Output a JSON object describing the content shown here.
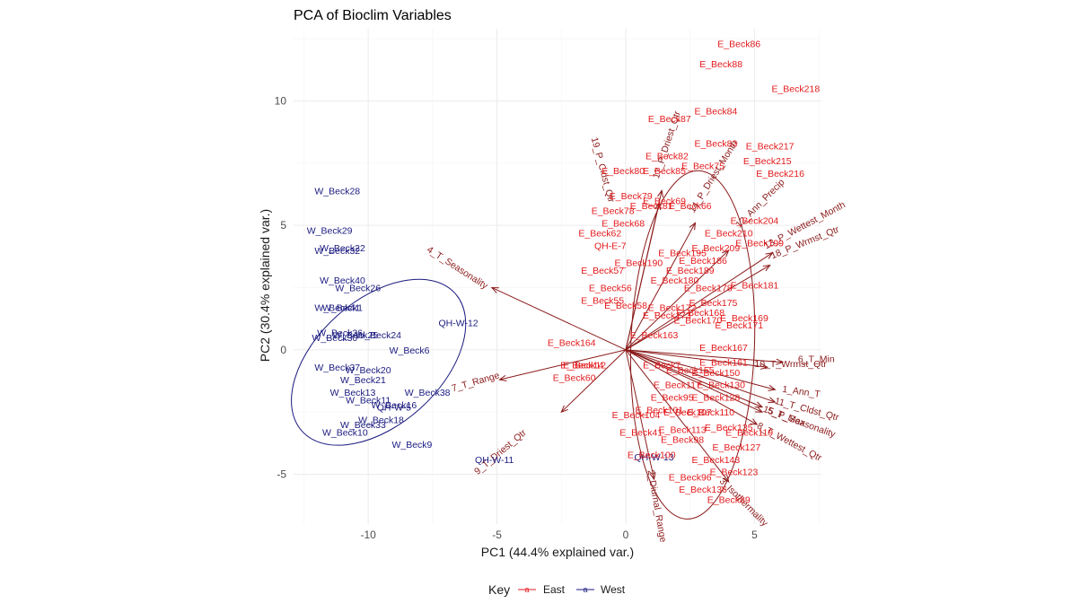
{
  "chart_data": {
    "type": "scatter",
    "title": "PCA of Bioclim Variables",
    "xlabel": "PC1 (44.4% explained var.)",
    "ylabel": "PC2 (30.4% explained var.)",
    "xlim": [
      -12.9,
      7.6
    ],
    "ylim": [
      -7.0,
      12.9
    ],
    "x_ticks": [
      -10,
      -5,
      0,
      5
    ],
    "y_ticks": [
      -5,
      0,
      5,
      10
    ],
    "grid": true,
    "legend": {
      "title": "Key",
      "position": "bottom",
      "entries": [
        {
          "label": "East",
          "color": "#e41a1c"
        },
        {
          "label": "West",
          "color": "#1a1a80"
        }
      ]
    },
    "colors": {
      "East": "#e41a1c",
      "West": "#1a1a80",
      "arrows": "#8b1a1a"
    },
    "series": [
      {
        "name": "West",
        "points": [
          {
            "label": "W_Beck28",
            "x": -11.2,
            "y": 6.4
          },
          {
            "label": "W_Beck29",
            "x": -11.5,
            "y": 4.8
          },
          {
            "label": "W_Beck22",
            "x": -11.0,
            "y": 4.1
          },
          {
            "label": "W_Beck32",
            "x": -11.2,
            "y": 4.0
          },
          {
            "label": "W_Beck40",
            "x": -11.0,
            "y": 2.8
          },
          {
            "label": "W_Beck26",
            "x": -10.4,
            "y": 2.5
          },
          {
            "label": "W_Beck41",
            "x": -11.2,
            "y": 1.7
          },
          {
            "label": "W_Beck1",
            "x": -11.0,
            "y": 1.7
          },
          {
            "label": "W_Beck36",
            "x": -11.1,
            "y": 0.7
          },
          {
            "label": "W_Beck30",
            "x": -11.3,
            "y": 0.5
          },
          {
            "label": "W_Beck25",
            "x": -10.5,
            "y": 0.6
          },
          {
            "label": "W_Beck24",
            "x": -9.6,
            "y": 0.6
          },
          {
            "label": "W_Beck6",
            "x": -8.4,
            "y": 0.0
          },
          {
            "label": "W_Beck37",
            "x": -11.2,
            "y": -0.7
          },
          {
            "label": "W_Beck20",
            "x": -10.0,
            "y": -0.8
          },
          {
            "label": "W_Beck21",
            "x": -10.2,
            "y": -1.2
          },
          {
            "label": "W_Beck13",
            "x": -10.6,
            "y": -1.7
          },
          {
            "label": "W_Beck38",
            "x": -7.7,
            "y": -1.7
          },
          {
            "label": "W_Beck11",
            "x": -10.0,
            "y": -2.0
          },
          {
            "label": "W_Beck16",
            "x": -9.0,
            "y": -2.2
          },
          {
            "label": "QH-W-5",
            "x": -9.0,
            "y": -2.3
          },
          {
            "label": "W_Beck18",
            "x": -9.5,
            "y": -2.8
          },
          {
            "label": "W_Beck33",
            "x": -10.2,
            "y": -3.0
          },
          {
            "label": "W_Beck10",
            "x": -10.9,
            "y": -3.3
          },
          {
            "label": "W_Beck9",
            "x": -8.3,
            "y": -3.8
          },
          {
            "label": "QH-W-12",
            "x": -6.5,
            "y": 1.1
          },
          {
            "label": "QH-W-11",
            "x": -5.1,
            "y": -4.4
          },
          {
            "label": "QH-W-13",
            "x": 1.1,
            "y": -4.3
          }
        ]
      },
      {
        "name": "East",
        "points": [
          {
            "label": "E_Beck86",
            "x": 4.4,
            "y": 12.3
          },
          {
            "label": "E_Beck88",
            "x": 3.7,
            "y": 11.5
          },
          {
            "label": "E_Beck218",
            "x": 6.6,
            "y": 10.5
          },
          {
            "label": "E_Beck84",
            "x": 3.5,
            "y": 9.6
          },
          {
            "label": "E_Beck87",
            "x": 1.7,
            "y": 9.3
          },
          {
            "label": "E_Beck83",
            "x": 3.5,
            "y": 8.3
          },
          {
            "label": "E_Beck217",
            "x": 5.6,
            "y": 8.2
          },
          {
            "label": "E_Beck82",
            "x": 1.6,
            "y": 7.8
          },
          {
            "label": "E_Beck215",
            "x": 5.5,
            "y": 7.6
          },
          {
            "label": "E_Beck75",
            "x": 3.0,
            "y": 7.4
          },
          {
            "label": "E_Beck216",
            "x": 6.0,
            "y": 7.1
          },
          {
            "label": "E_Beck80",
            "x": -0.1,
            "y": 7.2
          },
          {
            "label": "E_Beck85",
            "x": 1.5,
            "y": 7.2
          },
          {
            "label": "E_Beck79",
            "x": 0.2,
            "y": 6.2
          },
          {
            "label": "E_Beck69",
            "x": 1.5,
            "y": 6.0
          },
          {
            "label": "E_Beck81",
            "x": 1.0,
            "y": 5.8
          },
          {
            "label": "E_Beck66",
            "x": 2.5,
            "y": 5.8
          },
          {
            "label": "E_Beck78",
            "x": -0.5,
            "y": 5.6
          },
          {
            "label": "E_Beck68",
            "x": -0.1,
            "y": 5.1
          },
          {
            "label": "E_Beck204",
            "x": 5.0,
            "y": 5.2
          },
          {
            "label": "E_Beck62",
            "x": -1.0,
            "y": 4.7
          },
          {
            "label": "E_Beck210",
            "x": 4.0,
            "y": 4.7
          },
          {
            "label": "E_Beck199",
            "x": 5.2,
            "y": 4.3
          },
          {
            "label": "QH-E-7",
            "x": -0.6,
            "y": 4.2
          },
          {
            "label": "E_Beck209",
            "x": 3.5,
            "y": 4.1
          },
          {
            "label": "E_Beck195",
            "x": 2.2,
            "y": 3.9
          },
          {
            "label": "E_Beck186",
            "x": 3.0,
            "y": 3.6
          },
          {
            "label": "E_Beck190",
            "x": 0.5,
            "y": 3.5
          },
          {
            "label": "E_Beck57",
            "x": -0.9,
            "y": 3.2
          },
          {
            "label": "E_Beck189",
            "x": 2.5,
            "y": 3.2
          },
          {
            "label": "E_Beck181",
            "x": 5.0,
            "y": 2.6
          },
          {
            "label": "E_Beck180",
            "x": 1.9,
            "y": 2.8
          },
          {
            "label": "E_Beck178",
            "x": 3.2,
            "y": 2.5
          },
          {
            "label": "E_Beck56",
            "x": -0.6,
            "y": 2.5
          },
          {
            "label": "E_Beck55",
            "x": -0.9,
            "y": 2.0
          },
          {
            "label": "E_Beck58",
            "x": 0.0,
            "y": 1.8
          },
          {
            "label": "E_Beck172",
            "x": 1.8,
            "y": 1.7
          },
          {
            "label": "E_Beck175",
            "x": 3.4,
            "y": 1.9
          },
          {
            "label": "E_Beck168",
            "x": 2.9,
            "y": 1.5
          },
          {
            "label": "E_Beck169",
            "x": 4.6,
            "y": 1.3
          },
          {
            "label": "E_Beck170",
            "x": 2.8,
            "y": 1.2
          },
          {
            "label": "E_Beck171",
            "x": 4.4,
            "y": 1.0
          },
          {
            "label": "E_Beck173",
            "x": 1.6,
            "y": 1.4
          },
          {
            "label": "E_Beck163",
            "x": 1.1,
            "y": 0.6
          },
          {
            "label": "E_Beck164",
            "x": -2.1,
            "y": 0.3
          },
          {
            "label": "E_Beck167",
            "x": 3.8,
            "y": 0.1
          },
          {
            "label": "E_Beck161",
            "x": 3.8,
            "y": -0.5
          },
          {
            "label": "E_Beck14",
            "x": -1.7,
            "y": -0.6
          },
          {
            "label": "E_Beck12",
            "x": -1.6,
            "y": -0.6
          },
          {
            "label": "E_Beck60",
            "x": -2.0,
            "y": -1.1
          },
          {
            "label": "E_Beck155",
            "x": 2.5,
            "y": -0.8
          },
          {
            "label": "E_Beck150",
            "x": 3.5,
            "y": -0.9
          },
          {
            "label": "E_Beck7",
            "x": 1.4,
            "y": -0.6
          },
          {
            "label": "E_Beck130",
            "x": 3.7,
            "y": -1.4
          },
          {
            "label": "E_Beck95",
            "x": 1.8,
            "y": -1.9
          },
          {
            "label": "E_Beck128",
            "x": 3.5,
            "y": -1.9
          },
          {
            "label": "E_Beck117",
            "x": 2.0,
            "y": -1.4
          },
          {
            "label": "E_Beck101",
            "x": 1.3,
            "y": -2.4
          },
          {
            "label": "E_Beck107",
            "x": 2.4,
            "y": -2.5
          },
          {
            "label": "E_Beck110",
            "x": 3.3,
            "y": -2.5
          },
          {
            "label": "E_Beck104",
            "x": 0.4,
            "y": -2.6
          },
          {
            "label": "E_Beck135",
            "x": 4.0,
            "y": -3.1
          },
          {
            "label": "E_Beck119",
            "x": 4.8,
            "y": -3.3
          },
          {
            "label": "E_Beck113",
            "x": 2.2,
            "y": -3.2
          },
          {
            "label": "E_Beck41",
            "x": 0.6,
            "y": -3.3
          },
          {
            "label": "E_Beck98",
            "x": 2.2,
            "y": -3.6
          },
          {
            "label": "E_Beck127",
            "x": 4.3,
            "y": -3.9
          },
          {
            "label": "E_Beck100",
            "x": 1.0,
            "y": -4.2
          },
          {
            "label": "E_Beck143",
            "x": 3.5,
            "y": -4.4
          },
          {
            "label": "E_Beck123",
            "x": 4.2,
            "y": -4.9
          },
          {
            "label": "E_Beck96",
            "x": 2.5,
            "y": -5.1
          },
          {
            "label": "E_Beck136",
            "x": 3.0,
            "y": -5.6
          },
          {
            "label": "E_Beck89",
            "x": 4.0,
            "y": -6.0
          }
        ]
      }
    ],
    "loadings": [
      {
        "label": "4_T_Seasonality",
        "x": -5.2,
        "y": 2.5,
        "lx": -6.6,
        "ly": 3.2,
        "angle": 33
      },
      {
        "label": "7_T_Range",
        "x": -4.9,
        "y": -1.2,
        "lx": -5.8,
        "ly": -1.4,
        "angle": -16
      },
      {
        "label": "9_T_Driest_Qtr",
        "x": -2.5,
        "y": -2.5,
        "lx": -4.8,
        "ly": -4.2,
        "angle": -40
      },
      {
        "label": "19_P_Cldst_Qtr",
        "x": 1.3,
        "y": 5.9,
        "lx": -1.0,
        "ly": 7.2,
        "angle": 75
      },
      {
        "label": "17_P_Driest_Qtr",
        "x": 1.4,
        "y": 6.4,
        "lx": 1.7,
        "ly": 8.2,
        "angle": -72
      },
      {
        "label": "14_P_Driest_Month",
        "x": 2.7,
        "y": 5.1,
        "lx": 3.5,
        "ly": 6.9,
        "angle": -58
      },
      {
        "label": "12_Ann_Precip",
        "x": 4.0,
        "y": 4.0,
        "lx": 5.3,
        "ly": 5.8,
        "angle": -45
      },
      {
        "label": "13_P_Wettest_Month",
        "x": 5.7,
        "y": 3.9,
        "lx": 7.0,
        "ly": 4.9,
        "angle": -28
      },
      {
        "label": "18_P_Wrmst_Qtr",
        "x": 5.6,
        "y": 3.4,
        "lx": 7.0,
        "ly": 4.2,
        "angle": -22
      },
      {
        "label": "10_T_Wrmst_Qtr",
        "x": 5.5,
        "y": -0.7,
        "lx": 6.4,
        "ly": -0.7,
        "angle": 0
      },
      {
        "label": "6_T_Min",
        "x": 6.1,
        "y": -0.5,
        "lx": 7.4,
        "ly": -0.5,
        "angle": 0
      },
      {
        "label": "1_Ann_T",
        "x": 5.8,
        "y": -1.6,
        "lx": 6.8,
        "ly": -1.8,
        "angle": 8
      },
      {
        "label": "11_T_Cldst_Qtr",
        "x": 5.8,
        "y": -2.1,
        "lx": 7.0,
        "ly": -2.5,
        "angle": 15
      },
      {
        "label": "5_T_Max",
        "x": 5.3,
        "y": -2.3,
        "lx": 6.2,
        "ly": -2.8,
        "angle": 20
      },
      {
        "label": "15_P_Seasonality",
        "x": 5.3,
        "y": -2.5,
        "lx": 6.7,
        "ly": -3.0,
        "angle": 20
      },
      {
        "label": "8_T_Wettest_Qtr",
        "x": 5.1,
        "y": -3.0,
        "lx": 6.3,
        "ly": -3.8,
        "angle": 28
      },
      {
        "label": "2_Diurnal_Range",
        "x": 1.1,
        "y": -5.2,
        "lx": 1.1,
        "ly": -6.3,
        "angle": 80
      },
      {
        "label": "3_Isothermality",
        "x": 4.0,
        "y": -5.3,
        "lx": 4.5,
        "ly": -6.2,
        "angle": 45
      }
    ],
    "ellipses": [
      {
        "group": "West",
        "cx": -9.6,
        "cy": -0.5,
        "rx": 4.0,
        "ry": 2.5,
        "angle_deg": -42
      },
      {
        "group": "East",
        "cx": 2.6,
        "cy": 0.2,
        "rx": 2.4,
        "ry": 7.0,
        "angle_deg": 2
      }
    ]
  }
}
